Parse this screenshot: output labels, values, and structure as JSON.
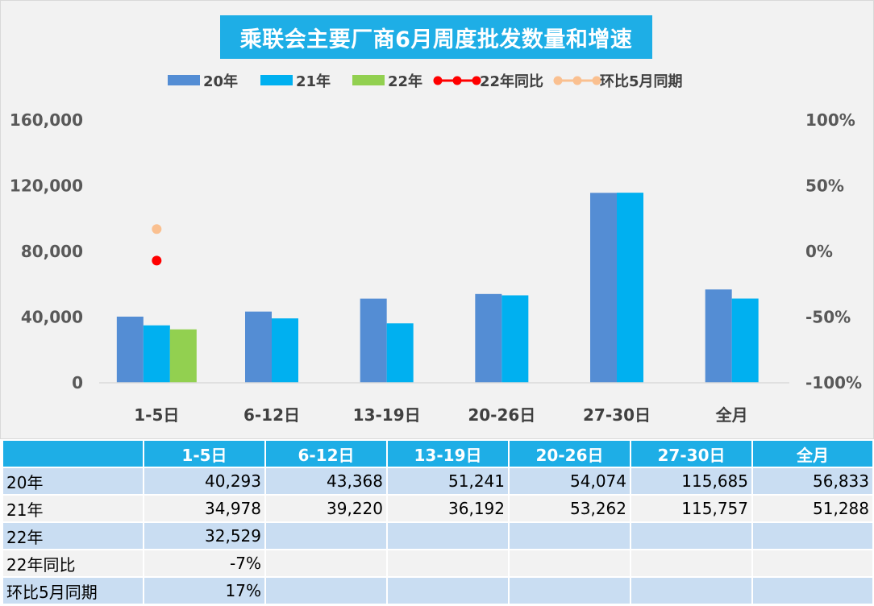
{
  "chart_data": {
    "type": "bar",
    "title": "乘联会主要厂商6月周度批发数量和增速",
    "categories": [
      "1-5日",
      "6-12日",
      "13-19日",
      "20-26日",
      "27-30日",
      "全月"
    ],
    "series": [
      {
        "name": "20年",
        "kind": "bar",
        "color": "#548dd4",
        "values": [
          40293,
          43368,
          51241,
          54074,
          115685,
          56833
        ]
      },
      {
        "name": "21年",
        "kind": "bar",
        "color": "#00b0f0",
        "values": [
          34978,
          39220,
          36192,
          53262,
          115757,
          51288
        ]
      },
      {
        "name": "22年",
        "kind": "bar",
        "color": "#92d050",
        "values": [
          32529,
          null,
          null,
          null,
          null,
          null
        ]
      },
      {
        "name": "22年同比",
        "kind": "line",
        "axis": "right",
        "color": "#ff0000",
        "values": [
          -7,
          null,
          null,
          null,
          null,
          null
        ]
      },
      {
        "name": "环比5月同期",
        "kind": "line",
        "axis": "right",
        "color": "#fac090",
        "values": [
          17,
          null,
          null,
          null,
          null,
          null
        ]
      }
    ],
    "y_left": {
      "min": 0,
      "max": 160000,
      "ticks": [
        "0",
        "40,000",
        "80,000",
        "120,000",
        "160,000"
      ]
    },
    "y_right": {
      "min": -100,
      "max": 100,
      "unit": "%",
      "ticks": [
        "-100%",
        "-50%",
        "0%",
        "50%",
        "100%"
      ]
    },
    "legend": "top",
    "grid": false
  },
  "table": {
    "header": [
      "",
      "1-5日",
      "6-12日",
      "13-19日",
      "20-26日",
      "27-30日",
      "全月"
    ],
    "rows": [
      {
        "label": "20年",
        "cells": [
          "40,293",
          "43,368",
          "51,241",
          "54,074",
          "115,685",
          "56,833"
        ]
      },
      {
        "label": "21年",
        "cells": [
          "34,978",
          "39,220",
          "36,192",
          "53,262",
          "115,757",
          "51,288"
        ]
      },
      {
        "label": "22年",
        "cells": [
          "32,529",
          "",
          "",
          "",
          "",
          ""
        ]
      },
      {
        "label": "22年同比",
        "cells": [
          "-7%",
          "",
          "",
          "",
          "",
          ""
        ]
      },
      {
        "label": "环比5月同期",
        "cells": [
          "17%",
          "",
          "",
          "",
          "",
          ""
        ]
      }
    ]
  }
}
